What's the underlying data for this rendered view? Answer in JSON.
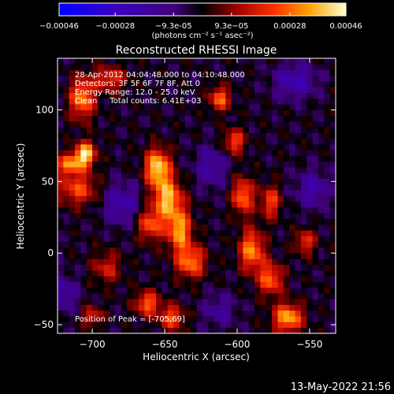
{
  "chart_data": {
    "type": "heatmap",
    "title": "Reconstructed RHESSI Image",
    "xlabel": "Heliocentric X (arcsec)",
    "ylabel": "Heliocentric Y (arcsec)",
    "xlim": [
      -724,
      -532
    ],
    "ylim": [
      -56,
      136
    ],
    "xticks": [
      -700,
      -650,
      -600,
      -550
    ],
    "yticks": [
      -50,
      0,
      50,
      100
    ],
    "colorbar": {
      "range": [
        -0.00046,
        0.00046
      ],
      "tick_values": [
        -0.00046,
        -0.00028,
        -9.3e-05,
        9.3e-05,
        0.00028,
        0.00046
      ],
      "tick_labels": [
        "-0.00046",
        "-0.00028",
        "-9.3e-05",
        "9.3e-05",
        "0.00028",
        "0.00046"
      ],
      "units": "(photons cm⁻² s⁻¹ asec⁻²)"
    },
    "annotations": [
      "28-Apr-2012 04:04:48.000 to 04:10:48.000",
      "Detectors: 3F 5F 6F 7F 8F, Att 0",
      "Energy Range: 12.0 - 25.0 keV",
      "Clean     Total counts: 6.41E+03"
    ],
    "peak_label": "Position of Peak = [-705,69]",
    "grid": false,
    "sources": [
      {
        "x": -705,
        "y": 69,
        "sx": 5,
        "sy": 6,
        "amp": 1.0
      },
      {
        "x": -716,
        "y": 62,
        "sx": 6,
        "sy": 5,
        "amp": 0.7
      },
      {
        "x": -707,
        "y": 108,
        "sx": 6,
        "sy": 10,
        "amp": 0.75
      },
      {
        "x": -710,
        "y": 45,
        "sx": 10,
        "sy": 8,
        "amp": 0.55
      },
      {
        "x": -655,
        "y": 60,
        "sx": 6,
        "sy": 9,
        "amp": 0.95
      },
      {
        "x": -648,
        "y": 38,
        "sx": 7,
        "sy": 10,
        "amp": 0.85
      },
      {
        "x": -640,
        "y": 16,
        "sx": 6,
        "sy": 10,
        "amp": 0.8
      },
      {
        "x": -660,
        "y": 20,
        "sx": 6,
        "sy": 8,
        "amp": 0.6
      },
      {
        "x": -632,
        "y": -6,
        "sx": 7,
        "sy": 8,
        "amp": 0.7
      },
      {
        "x": -662,
        "y": -35,
        "sx": 6,
        "sy": 6,
        "amp": 0.65
      },
      {
        "x": -645,
        "y": -45,
        "sx": 6,
        "sy": 6,
        "amp": 0.6
      },
      {
        "x": -612,
        "y": 108,
        "sx": 5,
        "sy": 6,
        "amp": 0.65
      },
      {
        "x": -602,
        "y": 78,
        "sx": 5,
        "sy": 6,
        "amp": 0.6
      },
      {
        "x": -596,
        "y": 40,
        "sx": 5,
        "sy": 9,
        "amp": 0.7
      },
      {
        "x": -590,
        "y": 2,
        "sx": 6,
        "sy": 10,
        "amp": 0.75
      },
      {
        "x": -577,
        "y": 36,
        "sx": 5,
        "sy": 8,
        "amp": 0.55
      },
      {
        "x": -577,
        "y": -18,
        "sx": 6,
        "sy": 8,
        "amp": 0.65
      },
      {
        "x": -565,
        "y": -45,
        "sx": 7,
        "sy": 7,
        "amp": 0.85
      },
      {
        "x": -553,
        "y": 8,
        "sx": 5,
        "sy": 6,
        "amp": 0.5
      },
      {
        "x": -688,
        "y": 122,
        "sx": 8,
        "sy": 6,
        "amp": 0.5
      },
      {
        "x": -700,
        "y": -44,
        "sx": 5,
        "sy": 5,
        "amp": 0.45
      },
      {
        "x": -690,
        "y": -10,
        "sx": 7,
        "sy": 8,
        "amp": 0.4
      },
      {
        "x": -560,
        "y": 120,
        "sx": 10,
        "sy": 8,
        "amp": -0.45
      },
      {
        "x": -680,
        "y": 35,
        "sx": 9,
        "sy": 10,
        "amp": -0.4
      },
      {
        "x": -618,
        "y": 60,
        "sx": 8,
        "sy": 10,
        "amp": -0.35
      },
      {
        "x": -548,
        "y": 45,
        "sx": 8,
        "sy": 9,
        "amp": -0.4
      },
      {
        "x": -720,
        "y": -28,
        "sx": 7,
        "sy": 9,
        "amp": -0.35
      },
      {
        "x": -612,
        "y": -40,
        "sx": 8,
        "sy": 8,
        "amp": -0.3
      }
    ]
  },
  "footer": {
    "timestamp": "13-May-2022 21:56"
  }
}
